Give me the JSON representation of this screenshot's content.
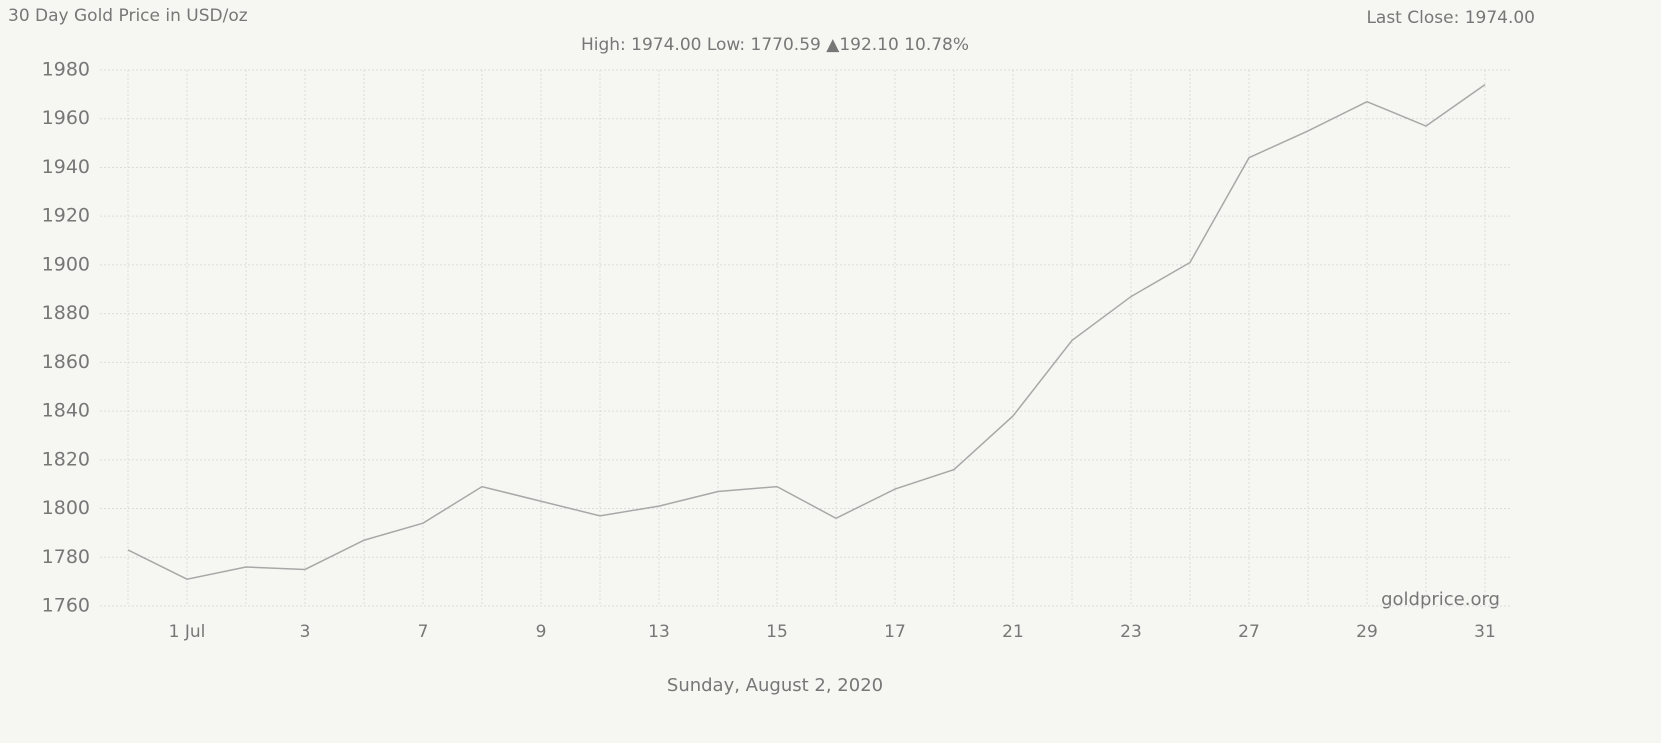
{
  "chart_data": {
    "type": "line",
    "title": "30 Day Gold Price in USD/oz",
    "last_close": "Last Close: 1974.00",
    "subtitle": "High: 1974.00 Low: 1770.59 ▲192.10 10.78%",
    "watermark": "goldprice.org",
    "xlabel": "Sunday, August 2, 2020",
    "categories": [
      null,
      "1 Jul",
      null,
      "3",
      null,
      "7",
      null,
      "9",
      null,
      "13",
      null,
      "15",
      null,
      "17",
      null,
      "21",
      null,
      "23",
      null,
      "27",
      null,
      "29",
      null,
      "31"
    ],
    "series": [
      {
        "name": "Gold",
        "color": "#a8a8a8",
        "values": [
          1783,
          1771,
          1776,
          1775,
          1787,
          1794,
          1809,
          1803,
          1797,
          1801,
          1807,
          1809,
          1796,
          1808,
          1816,
          1838,
          1869,
          1887,
          1901,
          1944,
          1955,
          1967,
          1957,
          1974
        ]
      }
    ],
    "ylim": [
      1760,
      1980
    ],
    "yticks": [
      1760,
      1780,
      1800,
      1820,
      1840,
      1860,
      1880,
      1900,
      1920,
      1940,
      1960,
      1980
    ],
    "grid": true
  }
}
